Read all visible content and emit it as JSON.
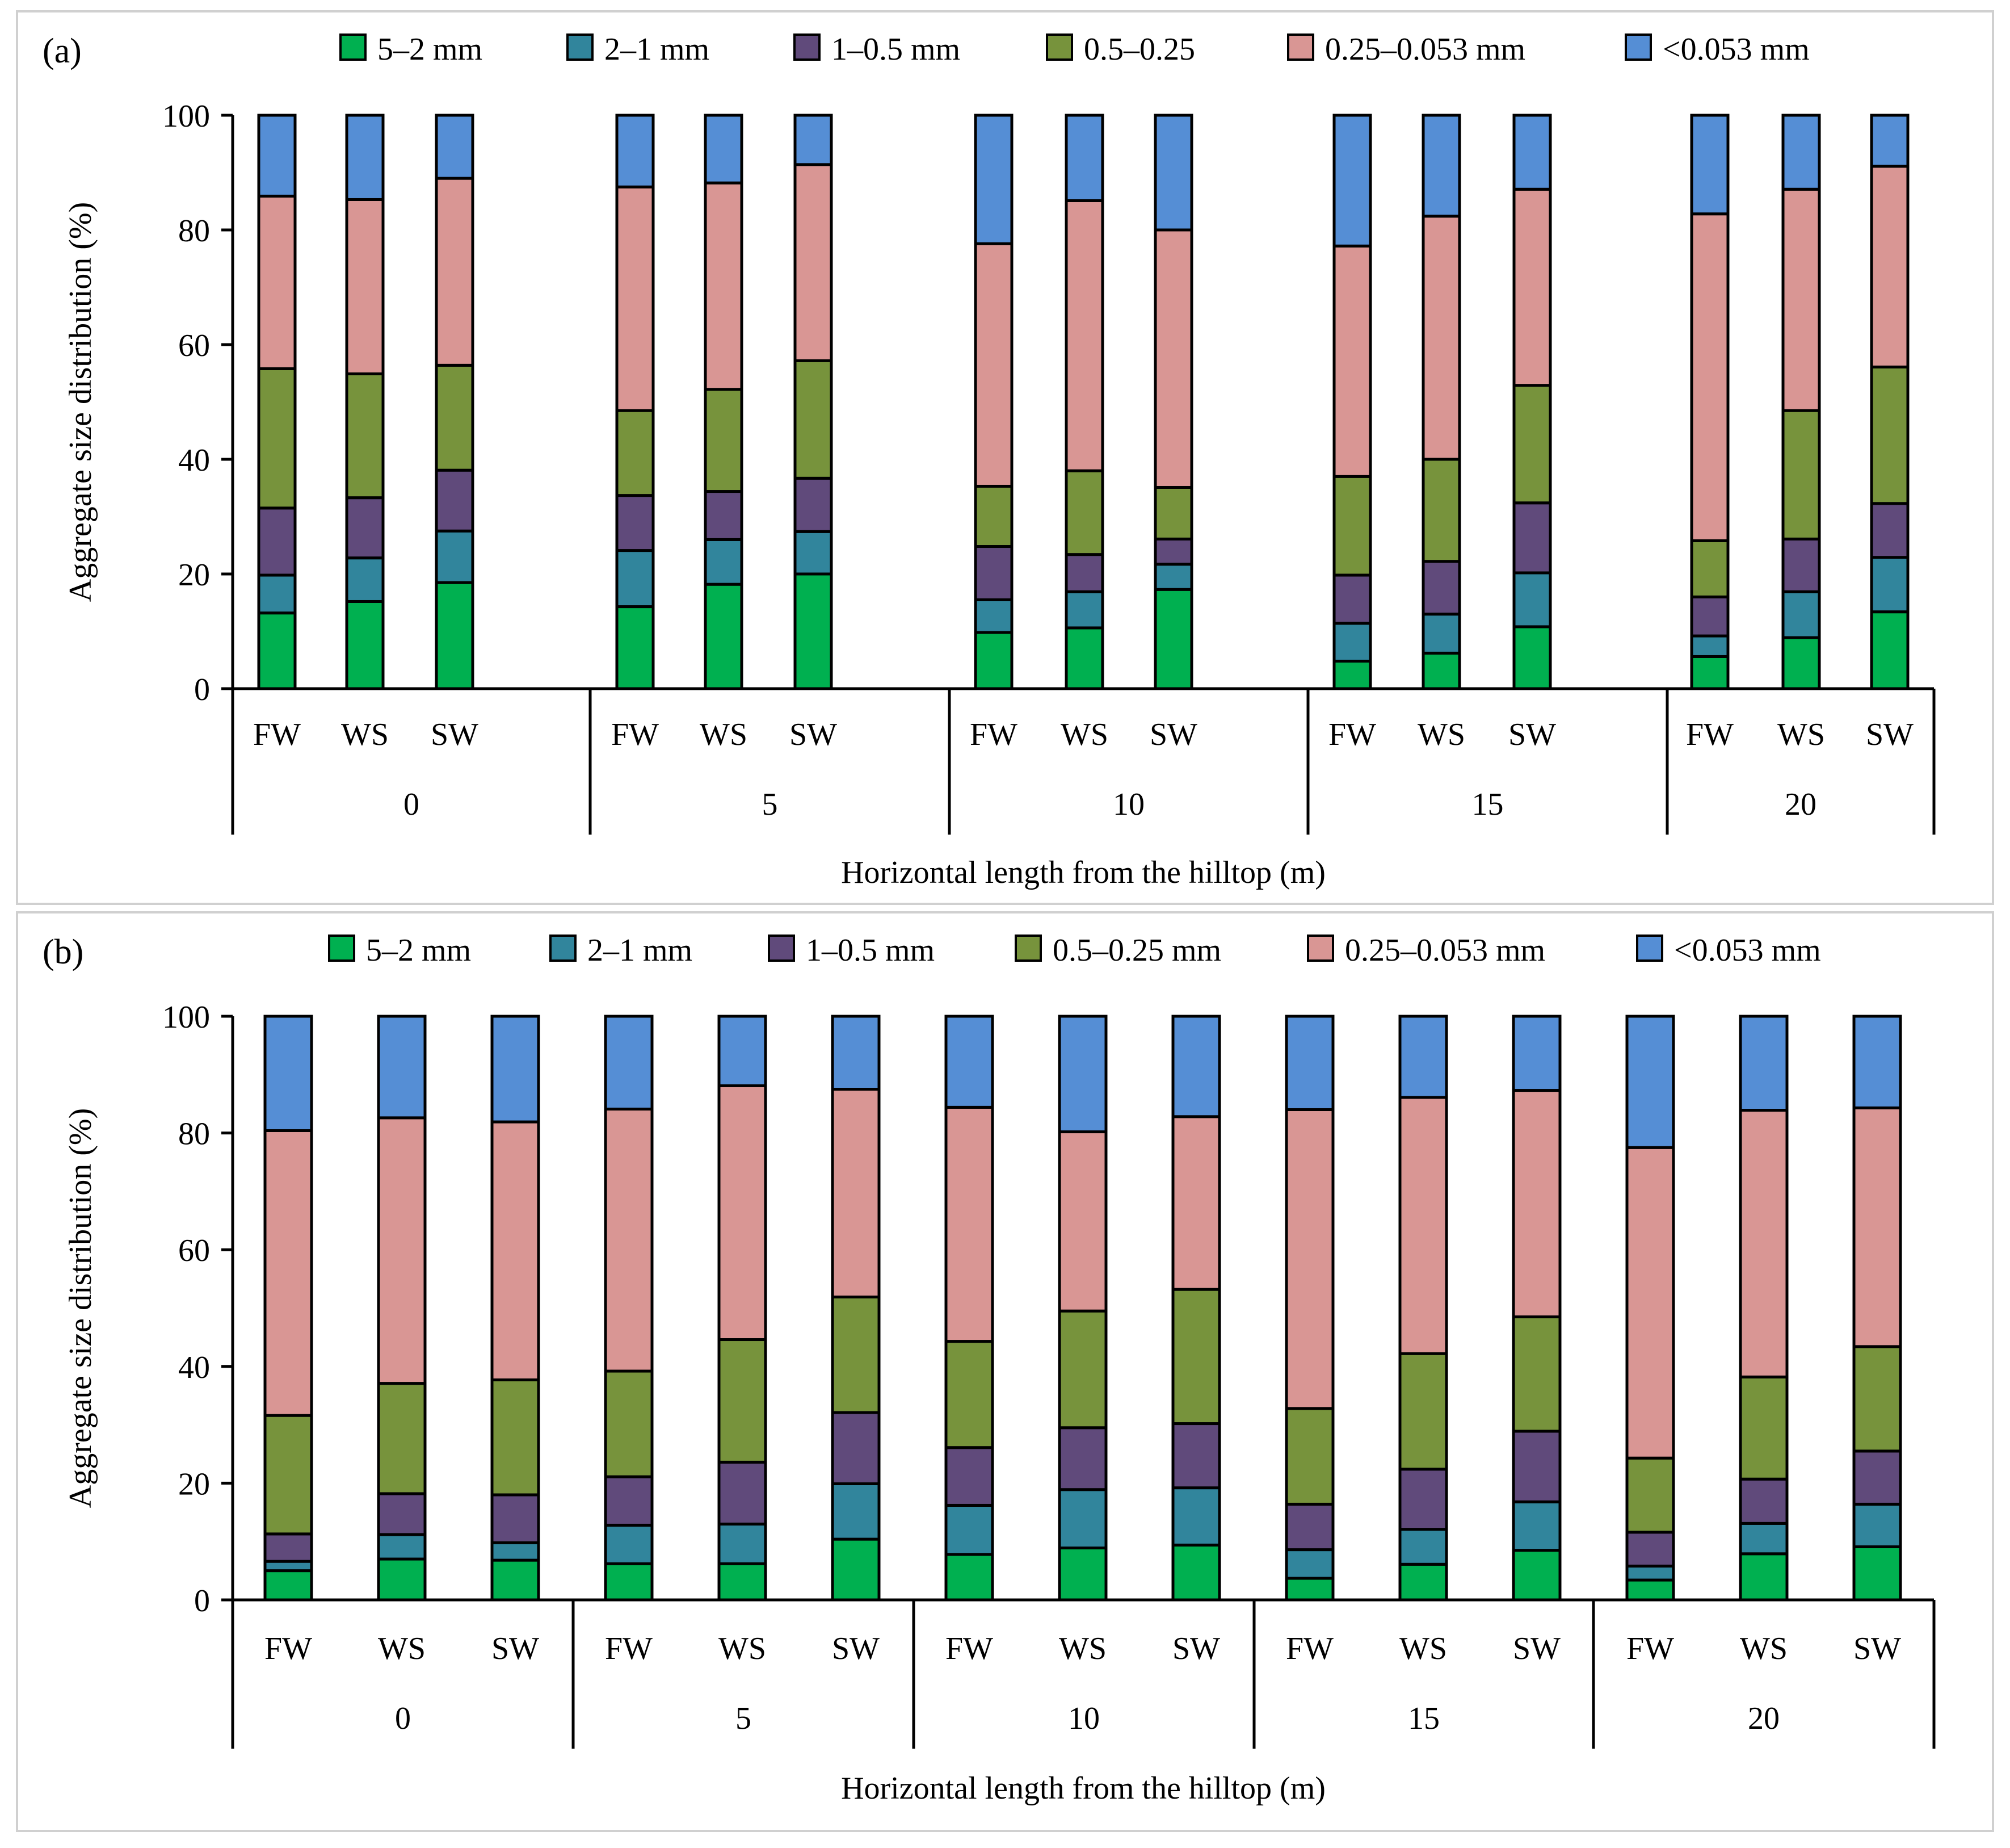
{
  "chart_data": [
    {
      "type": "bar",
      "stacked": true,
      "panel_label": "(a)",
      "xlabel": "Horizontal length from the hilltop (m)",
      "ylabel": "Aggregate size distribution (%)",
      "ylim": [
        0,
        100
      ],
      "yticks": [
        "0",
        "20",
        "40",
        "60",
        "80",
        "100"
      ],
      "groups": [
        "0",
        "5",
        "10",
        "15",
        "20"
      ],
      "categories": [
        "FW",
        "WS",
        "SW"
      ],
      "legend_position": "top",
      "series": [
        {
          "name": "5–2 mm",
          "color": "#00b050",
          "values": [
            [
              13.2,
              15.2,
              18.5
            ],
            [
              14.3,
              18.2,
              20.0
            ],
            [
              9.8,
              10.6,
              17.3
            ],
            [
              4.8,
              6.2,
              10.8
            ],
            [
              5.6,
              8.9,
              13.4
            ]
          ]
        },
        {
          "name": "2–1 mm",
          "color": "#31859c",
          "values": [
            [
              6.6,
              7.6,
              9.0
            ],
            [
              9.8,
              7.8,
              7.4
            ],
            [
              5.7,
              6.3,
              4.4
            ],
            [
              6.6,
              6.8,
              9.4
            ],
            [
              3.6,
              8.0,
              9.5
            ]
          ]
        },
        {
          "name": "1–0.5 mm",
          "color": "#604a7b",
          "values": [
            [
              11.7,
              10.5,
              10.6
            ],
            [
              9.6,
              8.4,
              9.3
            ],
            [
              9.3,
              6.5,
              4.4
            ],
            [
              8.4,
              9.2,
              12.2
            ],
            [
              6.8,
              9.2,
              9.4
            ]
          ]
        },
        {
          "name": "0.5–0.25",
          "color": "#77933c",
          "values": [
            [
              24.3,
              21.6,
              18.3
            ],
            [
              14.8,
              17.8,
              20.5
            ],
            [
              10.5,
              14.6,
              9.0
            ],
            [
              17.2,
              17.8,
              20.5
            ],
            [
              9.8,
              22.4,
              23.8
            ]
          ]
        },
        {
          "name": "0.25–0.053 mm",
          "color": "#d99694",
          "values": [
            [
              30.1,
              30.4,
              32.6
            ],
            [
              39.0,
              36.0,
              34.2
            ],
            [
              42.3,
              47.1,
              44.9
            ],
            [
              40.2,
              42.4,
              34.2
            ],
            [
              57.0,
              38.6,
              35.0
            ]
          ]
        },
        {
          "name": "<0.053 mm",
          "color": "#558ed5",
          "values": [
            [
              14.1,
              14.7,
              11.0
            ],
            [
              12.5,
              11.8,
              8.6
            ],
            [
              22.4,
              14.9,
              20.0
            ],
            [
              22.8,
              17.6,
              12.9
            ],
            [
              17.2,
              12.9,
              8.9
            ]
          ]
        }
      ]
    },
    {
      "type": "bar",
      "stacked": true,
      "panel_label": "(b)",
      "xlabel": "Horizontal length from the hilltop (m)",
      "ylabel": "Aggregate size distribution (%)",
      "ylim": [
        0,
        100
      ],
      "yticks": [
        "0",
        "20",
        "40",
        "60",
        "80",
        "100"
      ],
      "groups": [
        "0",
        "5",
        "10",
        "15",
        "20"
      ],
      "categories": [
        "FW",
        "WS",
        "SW"
      ],
      "legend_position": "top",
      "series": [
        {
          "name": "5–2 mm",
          "color": "#00b050",
          "values": [
            [
              5.0,
              7.0,
              6.8
            ],
            [
              6.2,
              6.2,
              10.4
            ],
            [
              7.8,
              8.9,
              9.4
            ],
            [
              3.7,
              6.1,
              8.5
            ],
            [
              3.4,
              7.9,
              9.1
            ]
          ]
        },
        {
          "name": "2–1 mm",
          "color": "#31859c",
          "values": [
            [
              1.6,
              4.2,
              3.0
            ],
            [
              6.6,
              6.8,
              9.5
            ],
            [
              8.4,
              10.0,
              9.8
            ],
            [
              4.9,
              6.0,
              8.3
            ],
            [
              2.4,
              5.2,
              7.3
            ]
          ]
        },
        {
          "name": "1–0.5 mm",
          "color": "#604a7b",
          "values": [
            [
              4.7,
              7.0,
              8.2
            ],
            [
              8.3,
              10.6,
              12.2
            ],
            [
              9.9,
              10.6,
              11.0
            ],
            [
              7.8,
              10.3,
              12.1
            ],
            [
              5.8,
              7.6,
              9.1
            ]
          ]
        },
        {
          "name": "0.5–0.25 mm",
          "color": "#77933c",
          "values": [
            [
              20.3,
              18.9,
              19.7
            ],
            [
              18.1,
              21.0,
              19.8
            ],
            [
              18.2,
              20.0,
              23.0
            ],
            [
              16.4,
              19.8,
              19.6
            ],
            [
              12.7,
              17.5,
              17.9
            ]
          ]
        },
        {
          "name": "0.25–0.053 mm",
          "color": "#d99694",
          "values": [
            [
              48.8,
              45.5,
              44.2
            ],
            [
              44.9,
              43.5,
              35.6
            ],
            [
              40.1,
              30.7,
              29.6
            ],
            [
              51.2,
              43.9,
              38.8
            ],
            [
              53.2,
              45.7,
              40.9
            ]
          ]
        },
        {
          "name": "<0.053 mm",
          "color": "#558ed5",
          "values": [
            [
              19.6,
              17.4,
              18.1
            ],
            [
              15.9,
              11.9,
              12.5
            ],
            [
              15.6,
              19.8,
              17.2
            ],
            [
              16.0,
              13.9,
              12.7
            ],
            [
              22.5,
              16.1,
              15.7
            ]
          ]
        }
      ]
    }
  ],
  "style": {
    "border_color": "#d0d0d0",
    "axis_color": "#000000"
  }
}
